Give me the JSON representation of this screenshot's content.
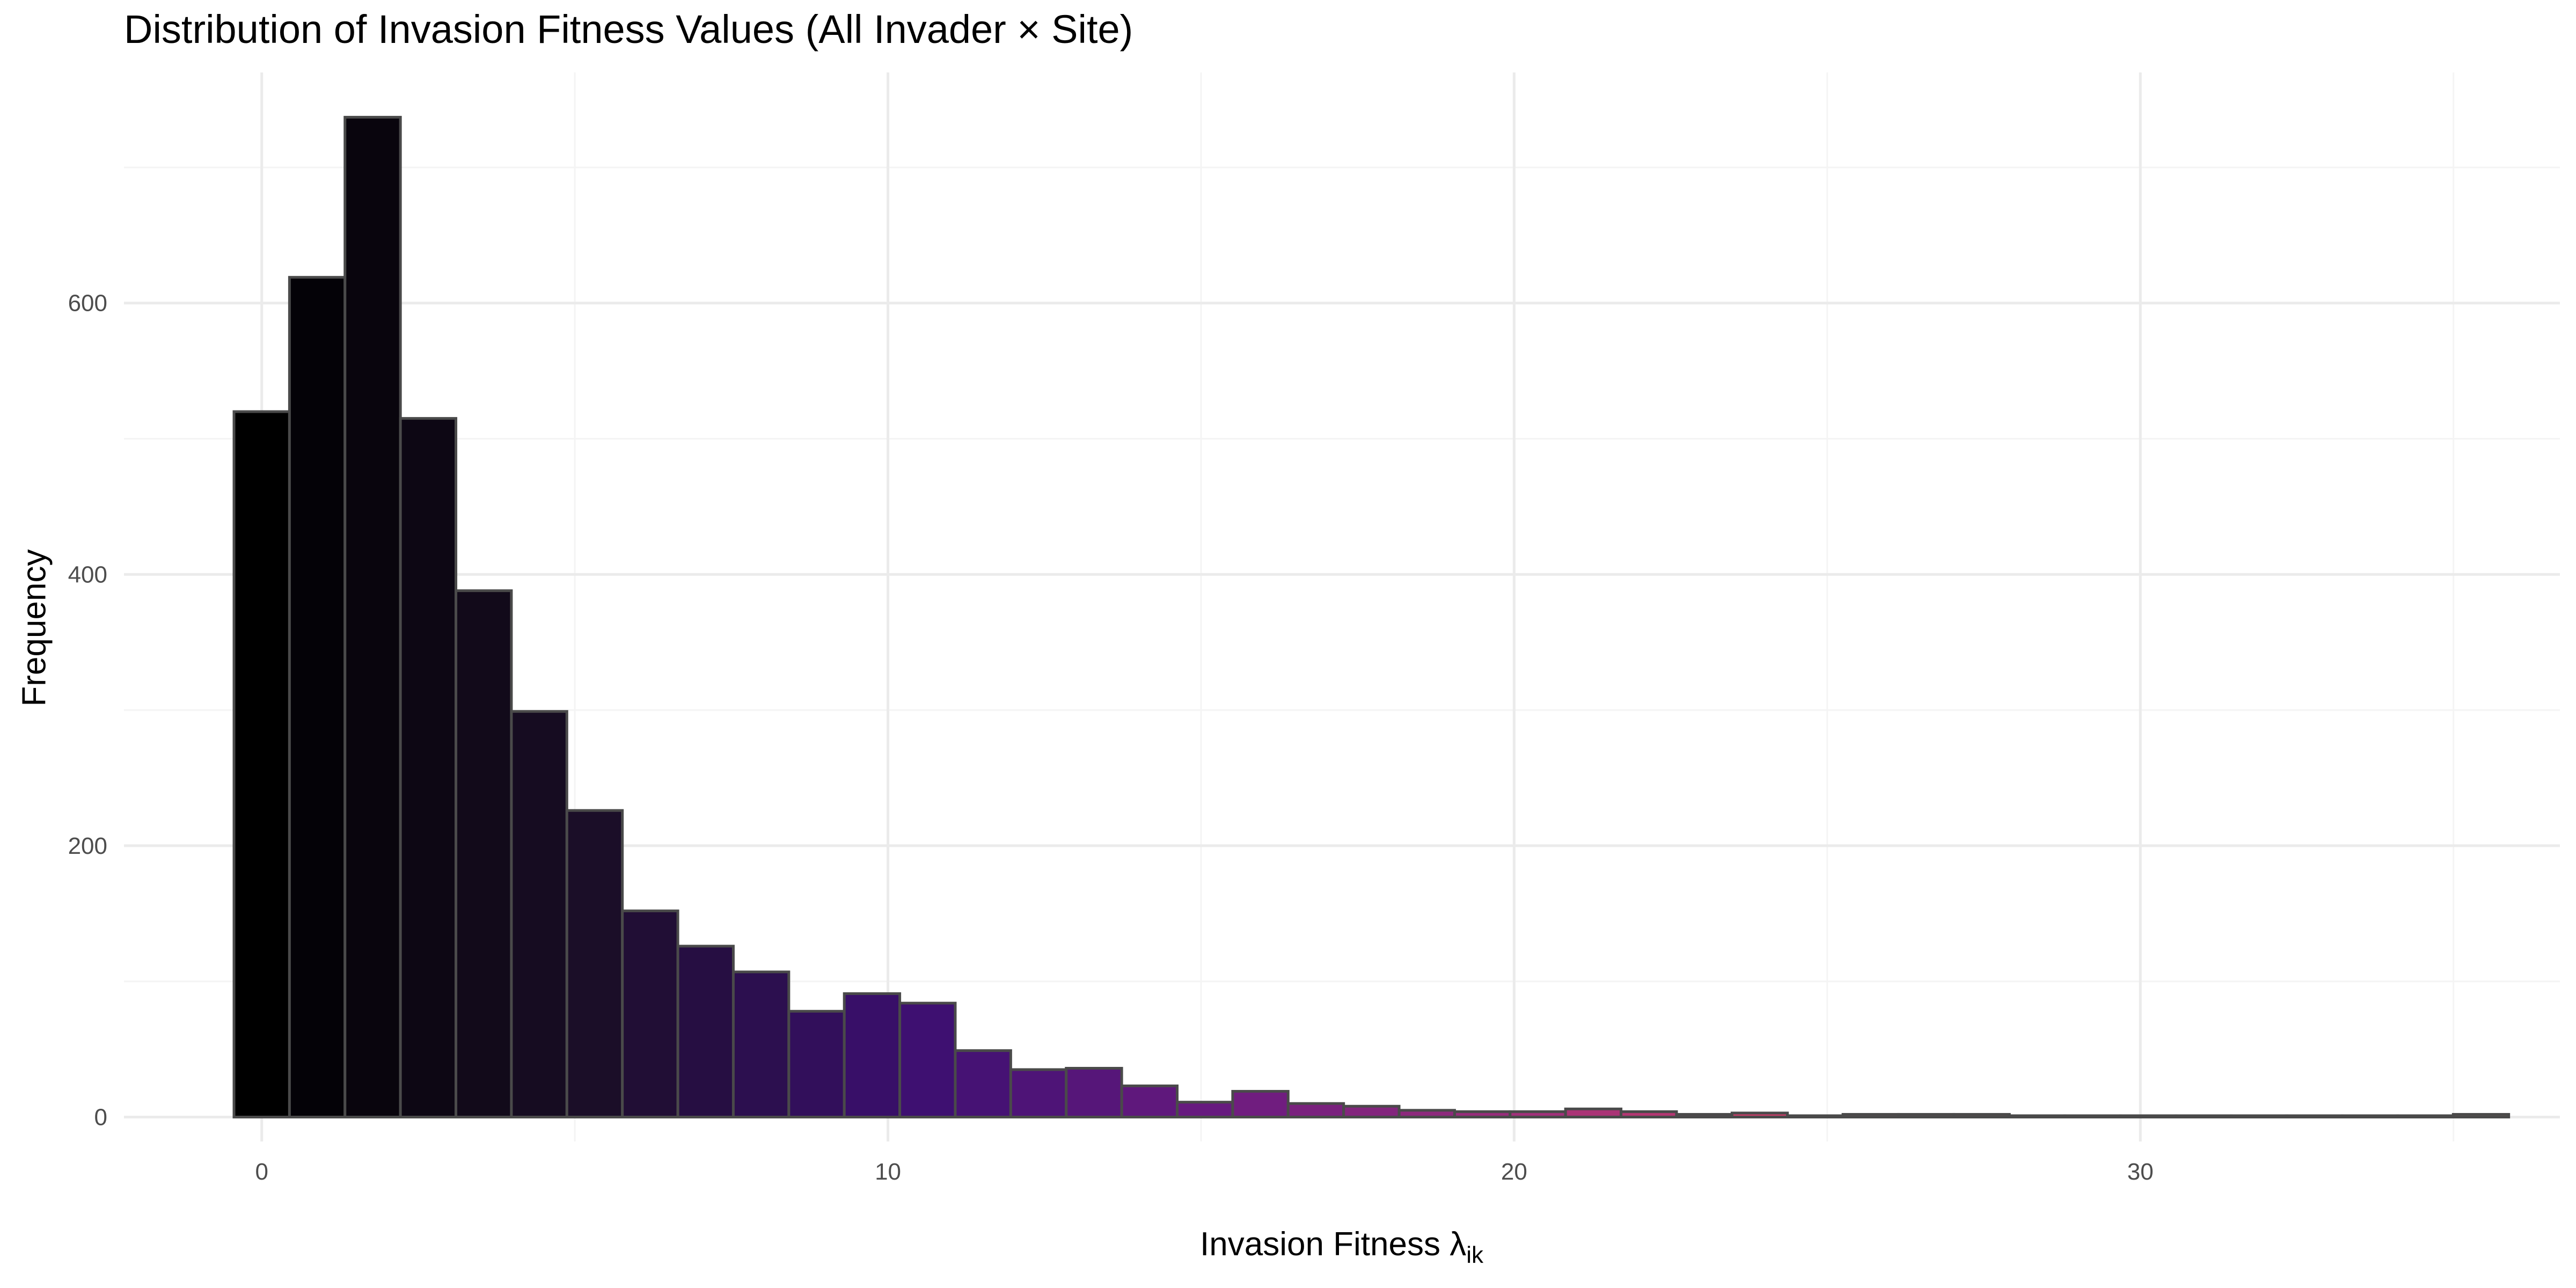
{
  "chart_data": {
    "type": "bar",
    "title": "Distribution of Invasion Fitness Values (All Invader × Site)",
    "xlabel": "Invasion Fitness λ",
    "xlabel_subscript": "ik",
    "ylabel": "Frequency",
    "xlim": [
      -2.2,
      36.7
    ],
    "ylim": [
      -18,
      770
    ],
    "x_ticks": [
      0,
      10,
      20,
      30
    ],
    "y_ticks": [
      0,
      200,
      400,
      600
    ],
    "x_tick_labels": [
      "0",
      "10",
      "20",
      "30"
    ],
    "y_tick_labels": [
      "0",
      "200",
      "400",
      "600"
    ],
    "grid": true,
    "legend": "none",
    "bin_width": 0.886,
    "bin_start": -0.443,
    "values": [
      520,
      619,
      737,
      515,
      388,
      299,
      226,
      152,
      126,
      107,
      78,
      91,
      84,
      49,
      35,
      36,
      23,
      11,
      19,
      10,
      8,
      5,
      4,
      4,
      6,
      4,
      2,
      3,
      1,
      2,
      2,
      2,
      1,
      1,
      1,
      1,
      1,
      1,
      1,
      1,
      2
    ],
    "colors": {
      "gradient": [
        "#000000",
        "#1a0e26",
        "#3b0f70",
        "#6a1b80",
        "#a3317a",
        "#d8445f",
        "#f06a50",
        "#f89562"
      ],
      "bar_outline": "#4a4a4a",
      "grid_major": "#ebebeb",
      "grid_minor": "#f4f4f4"
    }
  }
}
